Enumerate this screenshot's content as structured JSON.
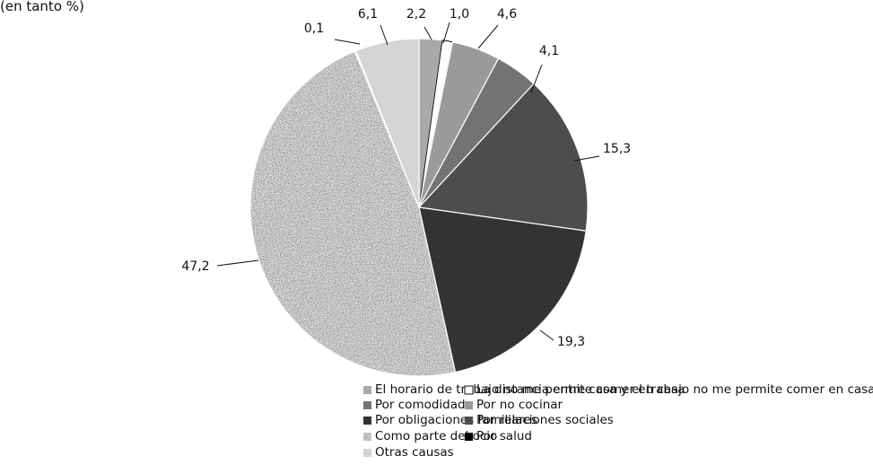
{
  "header_text": "(en tanto %)",
  "chart_data": {
    "type": "pie",
    "start_angle_deg": 0,
    "direction": "clockwise",
    "slices": [
      {
        "label": "El horario de trabajo no me permite comer en casa",
        "value": 2.2,
        "value_label": "2,2",
        "color": "#a9a9a9",
        "pattern": "solid"
      },
      {
        "label": "La distancia entre casa y el trabajo no me permite comer en casa",
        "value": 1.0,
        "value_label": "1,0",
        "color": "#ffffff",
        "pattern": "solid"
      },
      {
        "label": "Por no cocinar",
        "value": 4.6,
        "value_label": "4,6",
        "color": "#9a9a9a",
        "pattern": "solid"
      },
      {
        "label": "Por comodidad",
        "value": 4.1,
        "value_label": "4,1",
        "color": "#737373",
        "pattern": "solid"
      },
      {
        "label": "Por relaciones sociales",
        "value": 15.3,
        "value_label": "15,3",
        "color": "#4d4d4d",
        "pattern": "solid"
      },
      {
        "label": "Por obligaciones familiares",
        "value": 19.3,
        "value_label": "19,3",
        "color": "#333333",
        "pattern": "solid"
      },
      {
        "label": "Como parte del ocio",
        "value": 47.2,
        "value_label": "47,2",
        "color": "#a8a8a8",
        "pattern": "speckle"
      },
      {
        "label": "Por salud",
        "value": 0.1,
        "value_label": "0,1",
        "color": "#000000",
        "pattern": "solid"
      },
      {
        "label": "Otras causas",
        "value": 6.1,
        "value_label": "6,1",
        "color": "#d4d4d4",
        "pattern": "solid"
      }
    ],
    "legend": {
      "placement": "bottom",
      "columns": 2,
      "entries": [
        {
          "label": "El horario de trabajo no me permite comer en casa",
          "color": "#a9a9a9",
          "pattern": "solid",
          "col": 0,
          "row": 0
        },
        {
          "label": "La distancia entre casa y el trabajo no me permite comer en casa",
          "color": "#ffffff",
          "pattern": "solid",
          "col": 1,
          "row": 0
        },
        {
          "label": "Por comodidad",
          "color": "#737373",
          "pattern": "solid",
          "col": 0,
          "row": 1
        },
        {
          "label": "Por no cocinar",
          "color": "#9a9a9a",
          "pattern": "solid",
          "col": 1,
          "row": 1
        },
        {
          "label": "Por obligaciones familiares",
          "color": "#333333",
          "pattern": "solid",
          "col": 0,
          "row": 2
        },
        {
          "label": "Por relaciones sociales",
          "color": "#4d4d4d",
          "pattern": "solid",
          "col": 1,
          "row": 2
        },
        {
          "label": "Como parte del ocio",
          "color": "#a8a8a8",
          "pattern": "speckle",
          "col": 0,
          "row": 3
        },
        {
          "label": "Por salud",
          "color": "#000000",
          "pattern": "solid",
          "col": 1,
          "row": 3
        },
        {
          "label": "Otras causas",
          "color": "#d4d4d4",
          "pattern": "solid",
          "col": 0,
          "row": 4
        }
      ]
    }
  }
}
